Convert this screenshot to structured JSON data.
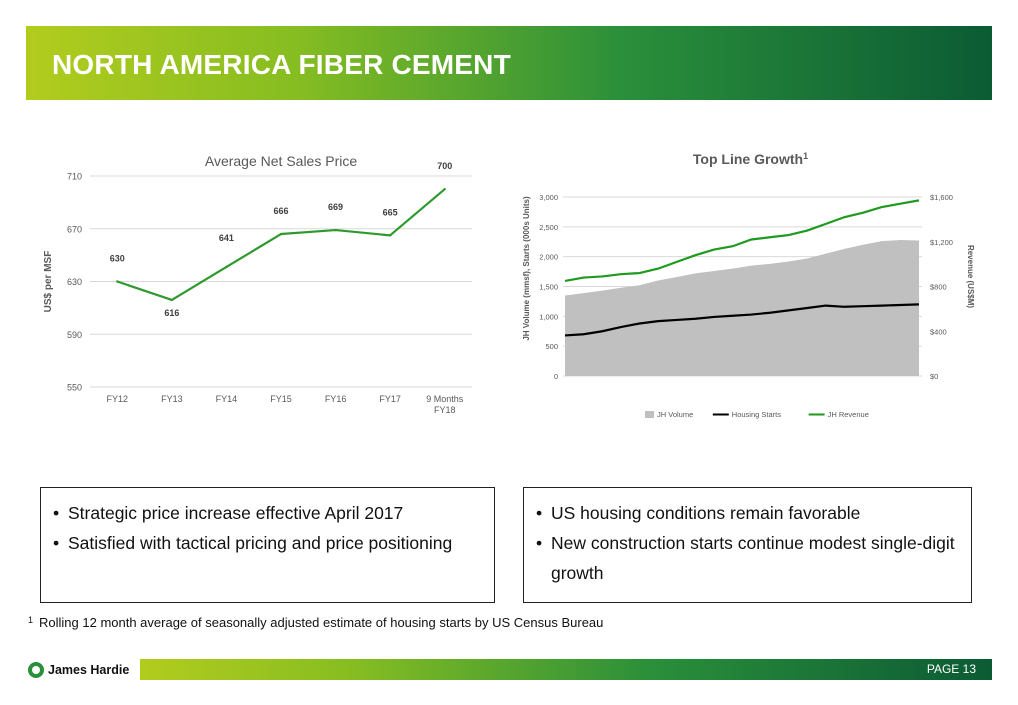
{
  "header": {
    "title": "NORTH AMERICA FIBER CEMENT"
  },
  "chart_data": [
    {
      "type": "line",
      "title": "Average Net Sales Price",
      "ylabel": "US$ per MSF",
      "xlabel": "",
      "categories": [
        "FY12",
        "FY13",
        "FY14",
        "FY15",
        "FY16",
        "FY17",
        "9 Months FY18"
      ],
      "values": [
        630,
        616,
        641,
        666,
        669,
        665,
        700
      ],
      "yticks": [
        550,
        590,
        630,
        670,
        710
      ],
      "ylim": [
        550,
        710
      ],
      "grid": true,
      "color": "#2e9a2e"
    },
    {
      "type": "area",
      "title": "Top Line Growth",
      "title_superscript": "1",
      "ylabel": "JH Volume (mmsf), Starts (000s Units)",
      "y2label": "Revenue (US$M)",
      "yticks": [
        "0",
        "500",
        "1,000",
        "1,500",
        "2,000",
        "2,500",
        "3,000"
      ],
      "ylim": [
        0,
        3000
      ],
      "y2ticks": [
        "$0",
        "$400",
        "$800",
        "$1,200",
        "$1,600"
      ],
      "y2lim": [
        0,
        1600
      ],
      "grid": true,
      "legend_position": "bottom",
      "series": [
        {
          "name": "JH Volume",
          "type": "area",
          "axis": "left",
          "color": "#c0c0c0",
          "values": [
            1350,
            1390,
            1430,
            1480,
            1520,
            1600,
            1660,
            1720,
            1760,
            1800,
            1850,
            1880,
            1920,
            1970,
            2050,
            2130,
            2200,
            2260,
            2280,
            2270
          ]
        },
        {
          "name": "Housing Starts",
          "type": "line",
          "axis": "left",
          "color": "#000000",
          "values": [
            680,
            700,
            750,
            820,
            880,
            920,
            940,
            960,
            990,
            1010,
            1030,
            1060,
            1100,
            1140,
            1180,
            1160,
            1170,
            1180,
            1190,
            1200
          ]
        },
        {
          "name": "JH Revenue",
          "type": "line",
          "axis": "right",
          "color": "#1e9a1e",
          "values": [
            850,
            880,
            890,
            910,
            920,
            960,
            1020,
            1080,
            1130,
            1160,
            1220,
            1240,
            1260,
            1300,
            1360,
            1420,
            1460,
            1510,
            1540,
            1570
          ]
        }
      ]
    }
  ],
  "left_box": {
    "bullets": [
      "Strategic price increase effective April 2017",
      "Satisfied with tactical pricing and price positioning"
    ]
  },
  "right_box": {
    "bullets": [
      "US housing conditions remain favorable",
      "New construction starts continue modest single-digit growth"
    ]
  },
  "footnote": {
    "marker": "1",
    "text": "Rolling 12 month average of seasonally adjusted estimate of housing starts by US Census Bureau"
  },
  "footer": {
    "company": "James Hardie",
    "page_label": "PAGE  13"
  }
}
